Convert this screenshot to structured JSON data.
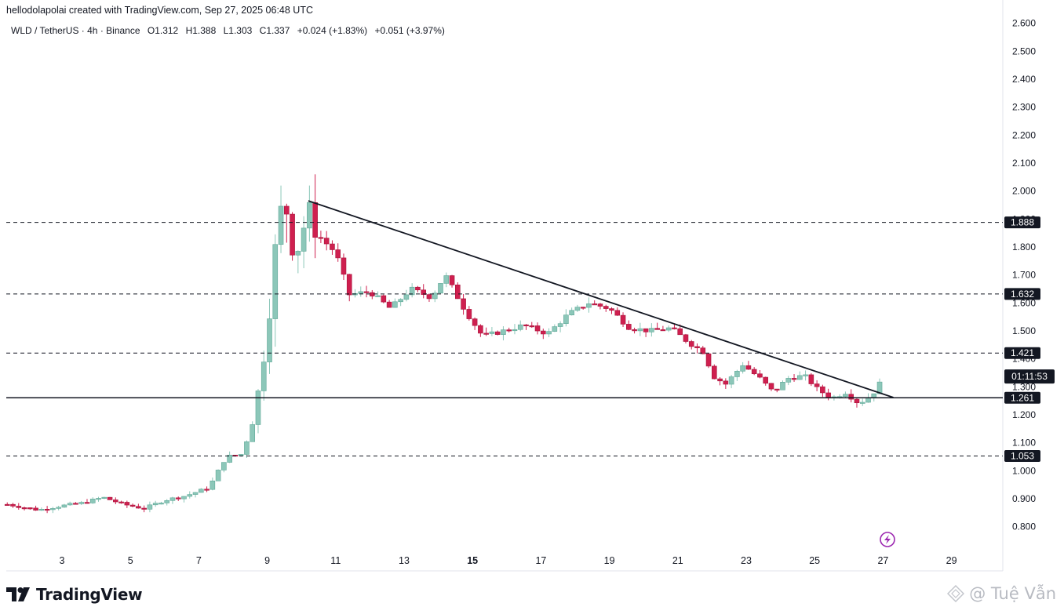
{
  "header": {
    "credit": "hellodolapolai created with TradingView.com, Sep 27, 2025 06:48 UTC"
  },
  "legend": {
    "symbol": "WLD / TetherUS · 4h · Binance",
    "open": "O1.312",
    "high": "H1.388",
    "low": "L1.303",
    "close": "C1.337",
    "change": "+0.024 (+1.83%)",
    "change2": "+0.051 (+3.97%)"
  },
  "branding": {
    "logo_text": "TradingView",
    "watermark": "@ Tuệ Vẫn"
  },
  "chart_data": {
    "type": "candlestick",
    "symbol": "WLD / TetherUS",
    "interval": "4h",
    "exchange": "Binance",
    "y_axis": {
      "ticks": [
        "0.800",
        "0.900",
        "1.000",
        "1.100",
        "1.200",
        "1.300",
        "1.400",
        "1.500",
        "1.600",
        "1.700",
        "1.800",
        "1.900",
        "2.000",
        "2.100",
        "2.200",
        "2.300",
        "2.400",
        "2.500",
        "2.600"
      ],
      "range": [
        0.72,
        2.62
      ],
      "position": "right"
    },
    "x_axis": {
      "ticks": [
        "3",
        "5",
        "7",
        "9",
        "11",
        "13",
        "15",
        "17",
        "19",
        "21",
        "23",
        "25",
        "27",
        "29"
      ],
      "bold_ticks": [
        "15"
      ],
      "range_days": [
        1.4,
        29.8
      ]
    },
    "price_lines": [
      {
        "value": 1.888,
        "label": "1.888",
        "style": "dashed"
      },
      {
        "value": 1.632,
        "label": "1.632",
        "style": "dashed"
      },
      {
        "value": 1.421,
        "label": "1.421",
        "style": "dashed"
      },
      {
        "value": 1.261,
        "label": "1.261",
        "style": "solid"
      },
      {
        "value": 1.053,
        "label": "1.053",
        "style": "dashed"
      }
    ],
    "countdown": {
      "label": "01:11:53",
      "value": 1.337
    },
    "trendline": {
      "start": {
        "day": 10.2,
        "price": 1.965
      },
      "end": {
        "day": 27.3,
        "price": 1.262
      }
    },
    "colors": {
      "up": "#8cc7b9",
      "down": "#cf1f4f",
      "up_wick": "#8cc7b9",
      "down_wick": "#cf1f4f",
      "grid": "#e6e6e6"
    },
    "keypoints": [
      [
        1.4,
        0.88
      ],
      [
        2.3,
        0.86
      ],
      [
        3.0,
        0.875
      ],
      [
        3.6,
        0.885
      ],
      [
        4.2,
        0.905
      ],
      [
        4.8,
        0.88
      ],
      [
        5.4,
        0.865
      ],
      [
        6.0,
        0.895
      ],
      [
        6.6,
        0.91
      ],
      [
        7.3,
        0.94
      ],
      [
        7.8,
        1.05
      ],
      [
        8.3,
        1.06
      ],
      [
        8.7,
        1.25
      ],
      [
        9.0,
        1.5
      ],
      [
        9.3,
        1.87
      ],
      [
        9.5,
        1.98
      ],
      [
        9.8,
        1.76
      ],
      [
        10.2,
        1.93
      ],
      [
        10.5,
        1.84
      ],
      [
        11.0,
        1.78
      ],
      [
        11.4,
        1.63
      ],
      [
        12.0,
        1.64
      ],
      [
        12.6,
        1.58
      ],
      [
        13.2,
        1.65
      ],
      [
        13.8,
        1.62
      ],
      [
        14.2,
        1.7
      ],
      [
        14.8,
        1.57
      ],
      [
        15.3,
        1.48
      ],
      [
        15.9,
        1.5
      ],
      [
        16.5,
        1.52
      ],
      [
        17.2,
        1.49
      ],
      [
        17.8,
        1.56
      ],
      [
        18.4,
        1.6
      ],
      [
        19.0,
        1.58
      ],
      [
        19.6,
        1.51
      ],
      [
        20.2,
        1.5
      ],
      [
        20.8,
        1.51
      ],
      [
        21.3,
        1.46
      ],
      [
        21.8,
        1.42
      ],
      [
        22.0,
        1.34
      ],
      [
        22.4,
        1.31
      ],
      [
        22.9,
        1.38
      ],
      [
        23.4,
        1.33
      ],
      [
        23.8,
        1.28
      ],
      [
        24.2,
        1.33
      ],
      [
        24.7,
        1.34
      ],
      [
        25.1,
        1.29
      ],
      [
        25.5,
        1.26
      ],
      [
        25.9,
        1.28
      ],
      [
        26.3,
        1.24
      ],
      [
        26.7,
        1.275
      ],
      [
        27.0,
        1.33
      ]
    ]
  }
}
